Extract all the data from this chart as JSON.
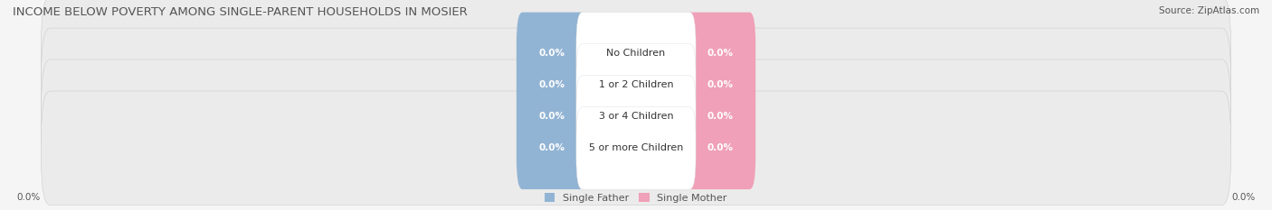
{
  "title": "INCOME BELOW POVERTY AMONG SINGLE-PARENT HOUSEHOLDS IN MOSIER",
  "source": "Source: ZipAtlas.com",
  "categories": [
    "No Children",
    "1 or 2 Children",
    "3 or 4 Children",
    "5 or more Children"
  ],
  "single_father_values": [
    0.0,
    0.0,
    0.0,
    0.0
  ],
  "single_mother_values": [
    0.0,
    0.0,
    0.0,
    0.0
  ],
  "father_color": "#92b4d4",
  "mother_color": "#f0a0b8",
  "bar_bg_color": "#ebebeb",
  "bar_border_color": "#cccccc",
  "center_label_bg": "#ffffff",
  "title_fontsize": 9.5,
  "source_fontsize": 7.5,
  "value_fontsize": 7.5,
  "cat_fontsize": 8,
  "legend_fontsize": 8,
  "axis_label": "0.0%",
  "background_color": "#f5f5f5",
  "title_color": "#555555",
  "text_color": "#555555",
  "bar_value_color": "#ffffff",
  "cat_text_color": "#333333"
}
